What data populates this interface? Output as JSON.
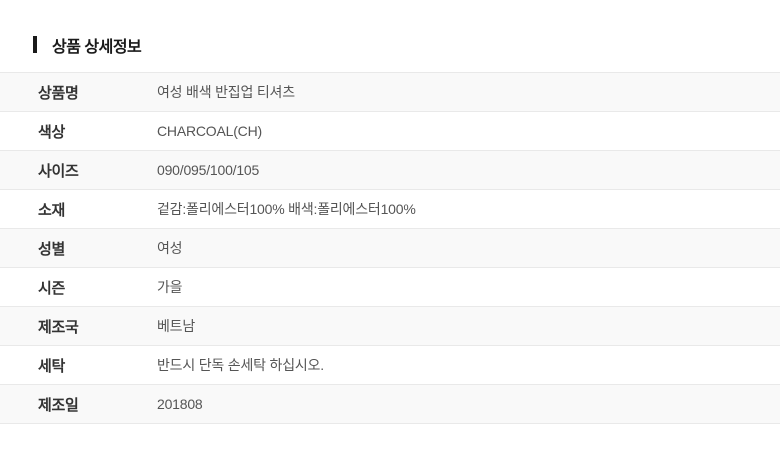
{
  "section": {
    "title": "상품 상세정보"
  },
  "table": {
    "rows": [
      {
        "label": "상품명",
        "value": "여성 배색 반집업 티셔츠"
      },
      {
        "label": "색상",
        "value": "CHARCOAL(CH)"
      },
      {
        "label": "사이즈",
        "value": "090/095/100/105"
      },
      {
        "label": "소재",
        "value": "겉감:폴리에스터100% 배색:폴리에스터100%"
      },
      {
        "label": "성별",
        "value": "여성"
      },
      {
        "label": "시즌",
        "value": "가을"
      },
      {
        "label": "제조국",
        "value": "베트남"
      },
      {
        "label": "세탁",
        "value": "반드시 단독 손세탁 하십시오."
      },
      {
        "label": "제조일",
        "value": "201808"
      }
    ]
  },
  "colors": {
    "title_text": "#1a1a1a",
    "label_text": "#333333",
    "value_text": "#555555",
    "row_stripe": "#f9f9f9",
    "row_border": "#e9e9e9",
    "background": "#ffffff"
  }
}
